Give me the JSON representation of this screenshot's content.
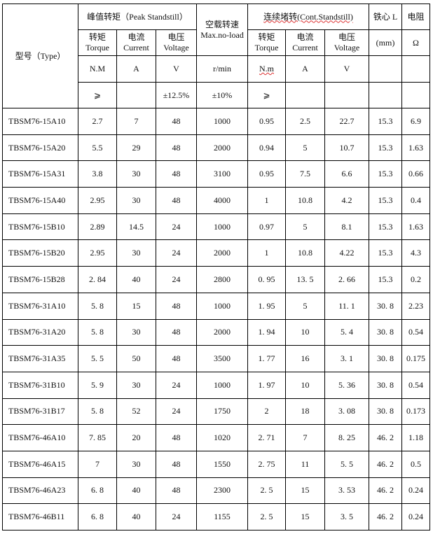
{
  "header": {
    "type": "型号（Type）",
    "peak": "峰值转矩（Peak Standstill）",
    "noload": "空载转速 Max.no-load",
    "cont": "连续堵转(Cont.Standstill)",
    "core": "铁心 L",
    "resist": "电阻",
    "torque": "转矩 Torque",
    "current": "电流 Current",
    "voltage": "电压 Voltage",
    "mm": "(mm)",
    "ohm": "Ω",
    "u_nm": "N.M",
    "u_a": "A",
    "u_v": "V",
    "u_rpm": "r/min",
    "u_nm2": "N.m",
    "u_a2": "A",
    "u_v2": "V",
    "t_ge": "⩾",
    "t_v": "±12.5%",
    "t_rpm": "±10%",
    "t_ge2": "⩾"
  },
  "rows": [
    [
      "TBSM76-15A10",
      "2.7",
      "7",
      "48",
      "1000",
      "0.95",
      "2.5",
      "22.7",
      "15.3",
      "6.9"
    ],
    [
      "TBSM76-15A20",
      "5.5",
      "29",
      "48",
      "2000",
      "0.94",
      "5",
      "10.7",
      "15.3",
      "1.63"
    ],
    [
      "TBSM76-15A31",
      "3.8",
      "30",
      "48",
      "3100",
      "0.95",
      "7.5",
      "6.6",
      "15.3",
      "0.66"
    ],
    [
      "TBSM76-15A40",
      "2.95",
      "30",
      "48",
      "4000",
      "1",
      "10.8",
      "4.2",
      "15.3",
      "0.4"
    ],
    [
      "TBSM76-15B10",
      "2.89",
      "14.5",
      "24",
      "1000",
      "0.97",
      "5",
      "8.1",
      "15.3",
      "1.63"
    ],
    [
      "TBSM76-15B20",
      "2.95",
      "30",
      "24",
      "2000",
      "1",
      "10.8",
      "4.22",
      "15.3",
      "4.3"
    ],
    [
      "TBSM76-15B28",
      "2. 84",
      "40",
      "24",
      "2800",
      "0. 95",
      "13. 5",
      "2. 66",
      "15.3",
      "0.2"
    ],
    [
      "TBSM76-31A10",
      "5. 8",
      "15",
      "48",
      "1000",
      "1. 95",
      "5",
      "11. 1",
      "30. 8",
      "2.23"
    ],
    [
      "TBSM76-31A20",
      "5. 8",
      "30",
      "48",
      "2000",
      "1. 94",
      "10",
      "5. 4",
      "30. 8",
      "0.54"
    ],
    [
      "TBSM76-31A35",
      "5. 5",
      "50",
      "48",
      "3500",
      "1. 77",
      "16",
      "3. 1",
      "30. 8",
      "0.175"
    ],
    [
      "TBSM76-31B10",
      "5. 9",
      "30",
      "24",
      "1000",
      "1. 97",
      "10",
      "5. 36",
      "30. 8",
      "0.54"
    ],
    [
      "TBSM76-31B17",
      "5. 8",
      "52",
      "24",
      "1750",
      "2",
      "18",
      "3. 08",
      "30. 8",
      "0.173"
    ],
    [
      "TBSM76-46A10",
      "7. 85",
      "20",
      "48",
      "1020",
      "2. 71",
      "7",
      "8. 25",
      "46. 2",
      "1.18"
    ],
    [
      "TBSM76-46A15",
      "7",
      "30",
      "48",
      "1550",
      "2. 75",
      "11",
      "5. 5",
      "46. 2",
      "0.5"
    ],
    [
      "TBSM76-46A23",
      "6. 8",
      "40",
      "48",
      "2300",
      "2. 5",
      "15",
      "3. 53",
      "46. 2",
      "0.24"
    ],
    [
      "TBSM76-46B11",
      "6. 8",
      "40",
      "24",
      "1155",
      "2. 5",
      "15",
      "3. 5",
      "46. 2",
      "0.24"
    ]
  ]
}
